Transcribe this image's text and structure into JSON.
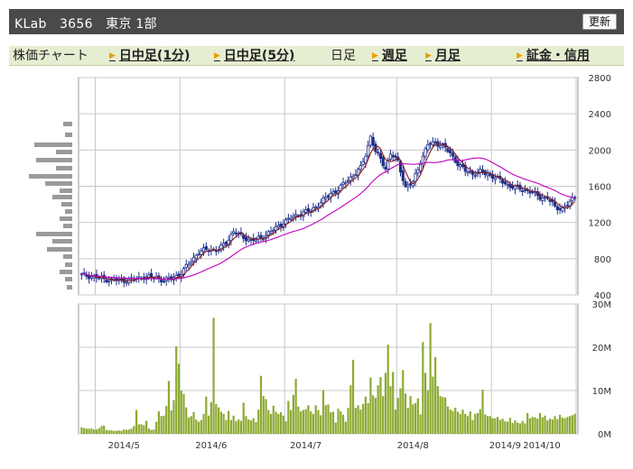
{
  "header": {
    "title": "KLab　3656　東京 1部",
    "refresh_label": "更新"
  },
  "tabs": [
    {
      "label": "株価チャート",
      "arrow": false,
      "link": false
    },
    {
      "label": "日中足(1分)",
      "arrow": true,
      "link": true
    },
    {
      "label": "日中足(5分)",
      "arrow": true,
      "link": true
    },
    {
      "label": "日足",
      "arrow": false,
      "link": false
    },
    {
      "label": "週足",
      "arrow": true,
      "link": true
    },
    {
      "label": "月足",
      "arrow": true,
      "link": true
    },
    {
      "label": "証金・信用",
      "arrow": true,
      "link": true
    }
  ],
  "colors": {
    "candle": "#1f2f8a",
    "ma_short": "#8b1a1a",
    "ma_long": "#c000c0",
    "volume": "#8caa32",
    "profile": "#9a9a9a",
    "grid": "#c8c8c8"
  },
  "chart_data": [
    {
      "type": "candlestick",
      "price_axis": {
        "ylim": [
          400,
          2800
        ],
        "ticks": [
          400,
          800,
          1200,
          1600,
          2000,
          2400,
          2800
        ]
      },
      "x_labels": [
        "2014/5",
        "2014/6",
        "2014/7",
        "2014/8",
        "2014/9",
        "2014/10"
      ],
      "moving_averages": [
        "short",
        "long"
      ],
      "grid": true,
      "close_series_anchors": [
        [
          0,
          620
        ],
        [
          5,
          600
        ],
        [
          10,
          570
        ],
        [
          15,
          560
        ],
        [
          20,
          565
        ],
        [
          25,
          600
        ],
        [
          30,
          590
        ],
        [
          33,
          560
        ],
        [
          36,
          580
        ],
        [
          40,
          640
        ],
        [
          44,
          780
        ],
        [
          47,
          870
        ],
        [
          50,
          900
        ],
        [
          55,
          900
        ],
        [
          58,
          980
        ],
        [
          61,
          1100
        ],
        [
          64,
          1050
        ],
        [
          68,
          1000
        ],
        [
          72,
          1030
        ],
        [
          76,
          1100
        ],
        [
          80,
          1180
        ],
        [
          84,
          1250
        ],
        [
          88,
          1300
        ],
        [
          92,
          1330
        ],
        [
          96,
          1420
        ],
        [
          100,
          1520
        ],
        [
          103,
          1560
        ],
        [
          106,
          1650
        ],
        [
          109,
          1720
        ],
        [
          112,
          1800
        ],
        [
          114,
          1950
        ],
        [
          116,
          2150
        ],
        [
          118,
          1980
        ],
        [
          120,
          1900
        ],
        [
          122,
          1800
        ],
        [
          124,
          1960
        ],
        [
          127,
          1870
        ],
        [
          130,
          1590
        ],
        [
          133,
          1640
        ],
        [
          136,
          1870
        ],
        [
          139,
          2060
        ],
        [
          142,
          2080
        ],
        [
          145,
          2050
        ],
        [
          148,
          1960
        ],
        [
          151,
          1850
        ],
        [
          154,
          1770
        ],
        [
          157,
          1740
        ],
        [
          160,
          1760
        ],
        [
          163,
          1730
        ],
        [
          166,
          1700
        ],
        [
          169,
          1650
        ],
        [
          172,
          1600
        ],
        [
          175,
          1580
        ],
        [
          178,
          1560
        ],
        [
          181,
          1530
        ],
        [
          184,
          1480
        ],
        [
          187,
          1470
        ],
        [
          190,
          1370
        ],
        [
          193,
          1350
        ],
        [
          196,
          1420
        ],
        [
          198,
          1490
        ]
      ],
      "session_count": 199
    },
    {
      "type": "bar",
      "title": "",
      "ylim": [
        0,
        30
      ],
      "y_ticks_label": [
        "0M",
        "10M",
        "20M",
        "30M"
      ],
      "values": [
        1.5,
        1.3,
        1.2,
        1.2,
        1.2,
        1.0,
        1.0,
        1.3,
        1.8,
        1.9,
        0.9,
        0.8,
        0.8,
        0.7,
        0.7,
        0.8,
        0.7,
        1.0,
        0.9,
        1.0,
        1.2,
        1.8,
        5.5,
        2.2,
        2.2,
        2.0,
        3.0,
        1.2,
        0.9,
        1.0,
        2.8,
        5.2,
        4.1,
        4.2,
        6.4,
        12.2,
        5.4,
        7.8,
        20.2,
        16.2,
        10.0,
        9.2,
        6.1,
        3.8,
        4.1,
        5.0,
        3.3,
        2.8,
        3.2,
        4.6,
        8.6,
        4.2,
        7.3,
        26.8,
        6.9,
        6.1,
        5.1,
        4.6,
        3.2,
        5.3,
        3.2,
        4.2,
        2.9,
        3.3,
        3.0,
        7.2,
        4.1,
        3.3,
        3.1,
        3.6,
        2.7,
        5.6,
        13.4,
        8.7,
        8.0,
        5.5,
        4.6,
        6.5,
        5.1,
        4.6,
        5.0,
        4.2,
        2.9,
        7.6,
        5.5,
        9.0,
        12.7,
        6.3,
        5.2,
        5.5,
        5.7,
        6.6,
        5.2,
        4.6,
        6.6,
        5.5,
        4.3,
        10.1,
        6.6,
        6.8,
        5.0,
        5.1,
        2.6,
        5.8,
        5.2,
        4.4,
        2.8,
        6.0,
        11.2,
        17.1,
        6.0,
        6.6,
        5.6,
        6.9,
        8.6,
        7.1,
        13.0,
        8.9,
        8.3,
        11.2,
        13.1,
        8.7,
        14.1,
        20.6,
        11.0,
        14.3,
        5.6,
        8.3,
        10.5,
        14.7,
        9.3,
        6.0,
        8.7,
        6.8,
        7.1,
        8.2,
        4.5,
        21.2,
        14.1,
        10.1,
        25.6,
        13.2,
        17.7,
        11.0,
        8.7,
        8.5,
        8.4,
        6.3,
        5.6,
        5.3,
        6.0,
        5.1,
        4.6,
        5.6,
        4.6,
        4.1,
        5.2,
        3.2,
        4.6,
        4.8,
        5.7,
        10.2,
        4.5,
        4.1,
        4.1,
        3.6,
        3.6,
        3.9,
        3.2,
        3.5,
        2.9,
        2.8,
        3.7,
        2.5,
        3.1,
        2.6,
        2.4,
        3.0,
        2.4,
        4.8,
        3.6,
        3.9,
        3.8,
        3.5,
        4.8,
        3.8,
        4.2,
        3.1,
        3.5,
        3.3,
        4.1,
        3.4,
        4.4,
        3.7,
        3.6,
        3.9,
        4.1,
        4.3,
        4.6
      ]
    }
  ]
}
